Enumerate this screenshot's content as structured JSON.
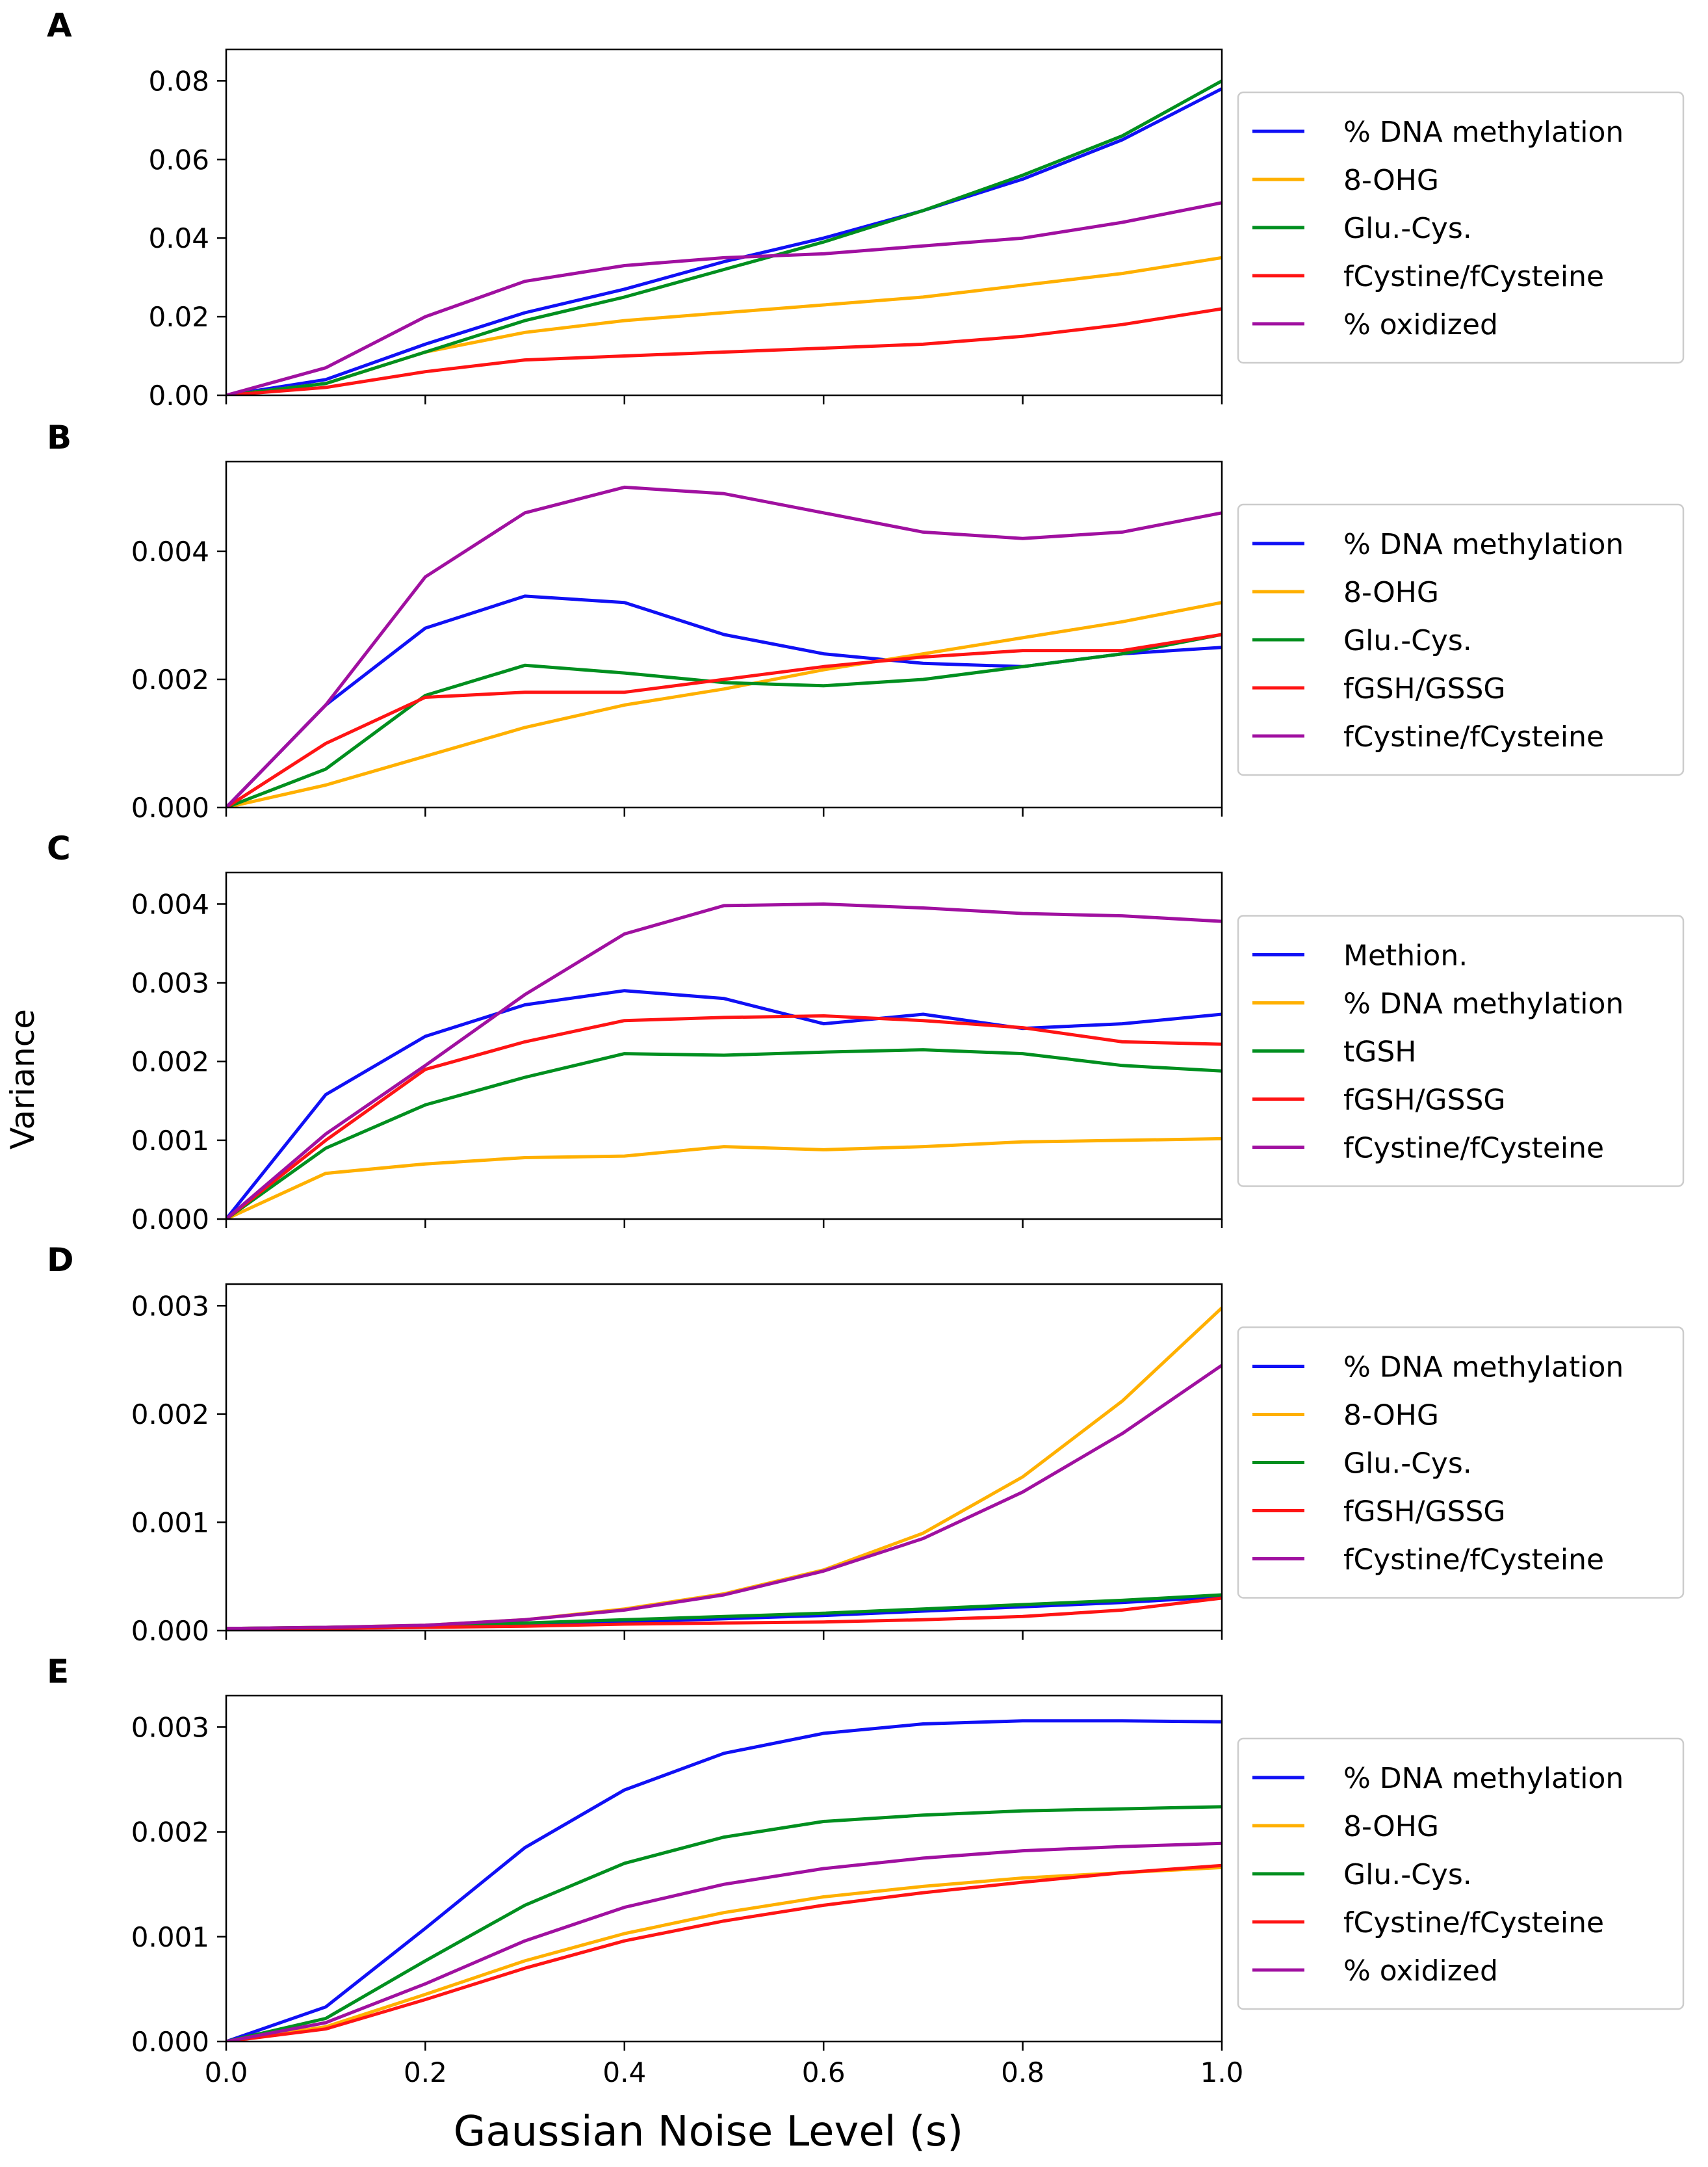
{
  "figure": {
    "ylabel": "Variance",
    "xlabel": "Gaussian Noise Level (s)",
    "xticks": [
      "0.0",
      "0.2",
      "0.4",
      "0.6",
      "0.8",
      "1.0"
    ]
  },
  "colors": {
    "blue": "#1010f5",
    "orange": "#ffb000",
    "green": "#008f1f",
    "red": "#ff1414",
    "purple": "#a010a0"
  },
  "chart_data": [
    {
      "type": "line",
      "panel": "A",
      "x": [
        0,
        0.1,
        0.2,
        0.3,
        0.4,
        0.5,
        0.6,
        0.7,
        0.8,
        0.9,
        1.0
      ],
      "xlim": [
        0,
        1
      ],
      "ylim": [
        0,
        0.088
      ],
      "yticks": [
        0,
        0.02,
        0.04,
        0.06,
        0.08
      ],
      "ytick_labels": [
        "0.00",
        "0.02",
        "0.04",
        "0.06",
        "0.08"
      ],
      "series": [
        {
          "name": "% DNA methylation",
          "color": "blue",
          "values": [
            0,
            0.004,
            0.013,
            0.021,
            0.027,
            0.034,
            0.04,
            0.047,
            0.055,
            0.065,
            0.078
          ]
        },
        {
          "name": "8-OHG",
          "color": "orange",
          "values": [
            0,
            0.003,
            0.011,
            0.016,
            0.019,
            0.021,
            0.023,
            0.025,
            0.028,
            0.031,
            0.035
          ]
        },
        {
          "name": "Glu.-Cys.",
          "color": "green",
          "values": [
            0,
            0.003,
            0.011,
            0.019,
            0.025,
            0.032,
            0.039,
            0.047,
            0.056,
            0.066,
            0.08
          ]
        },
        {
          "name": "fCystine/fCysteine",
          "color": "red",
          "values": [
            0,
            0.002,
            0.006,
            0.009,
            0.01,
            0.011,
            0.012,
            0.013,
            0.015,
            0.018,
            0.022
          ]
        },
        {
          "name": "% oxidized",
          "color": "purple",
          "values": [
            0,
            0.007,
            0.02,
            0.029,
            0.033,
            0.035,
            0.036,
            0.038,
            0.04,
            0.044,
            0.049
          ]
        }
      ]
    },
    {
      "type": "line",
      "panel": "B",
      "x": [
        0,
        0.1,
        0.2,
        0.3,
        0.4,
        0.5,
        0.6,
        0.7,
        0.8,
        0.9,
        1.0
      ],
      "xlim": [
        0,
        1
      ],
      "ylim": [
        0,
        0.0054
      ],
      "yticks": [
        0,
        0.002,
        0.004
      ],
      "ytick_labels": [
        "0.000",
        "0.002",
        "0.004"
      ],
      "series": [
        {
          "name": "% DNA methylation",
          "color": "blue",
          "values": [
            0,
            0.0016,
            0.0028,
            0.0033,
            0.0032,
            0.0027,
            0.0024,
            0.00225,
            0.0022,
            0.0024,
            0.0025
          ]
        },
        {
          "name": "8-OHG",
          "color": "orange",
          "values": [
            0,
            0.00035,
            0.0008,
            0.00125,
            0.0016,
            0.00185,
            0.00215,
            0.0024,
            0.00265,
            0.0029,
            0.0032
          ]
        },
        {
          "name": "Glu.-Cys.",
          "color": "green",
          "values": [
            0,
            0.0006,
            0.00175,
            0.00222,
            0.0021,
            0.00195,
            0.0019,
            0.002,
            0.0022,
            0.0024,
            0.0027
          ]
        },
        {
          "name": "fGSH/GSSG",
          "color": "red",
          "values": [
            0,
            0.001,
            0.00172,
            0.0018,
            0.0018,
            0.002,
            0.0022,
            0.00235,
            0.00245,
            0.00245,
            0.0027
          ]
        },
        {
          "name": "fCystine/fCysteine",
          "color": "purple",
          "values": [
            0,
            0.0016,
            0.0036,
            0.0046,
            0.005,
            0.0049,
            0.0046,
            0.0043,
            0.0042,
            0.0043,
            0.0046
          ]
        }
      ]
    },
    {
      "type": "line",
      "panel": "C",
      "x": [
        0,
        0.1,
        0.2,
        0.3,
        0.4,
        0.5,
        0.6,
        0.7,
        0.8,
        0.9,
        1.0
      ],
      "xlim": [
        0,
        1
      ],
      "ylim": [
        0,
        0.0044
      ],
      "yticks": [
        0,
        0.001,
        0.002,
        0.003,
        0.004
      ],
      "ytick_labels": [
        "0.000",
        "0.001",
        "0.002",
        "0.003",
        "0.004"
      ],
      "series": [
        {
          "name": "Methion.",
          "color": "blue",
          "values": [
            0,
            0.00158,
            0.00232,
            0.00272,
            0.0029,
            0.0028,
            0.00248,
            0.0026,
            0.00242,
            0.00248,
            0.0026
          ]
        },
        {
          "name": "% DNA methylation",
          "color": "orange",
          "values": [
            0,
            0.00058,
            0.0007,
            0.00078,
            0.0008,
            0.00092,
            0.00088,
            0.00092,
            0.00098,
            0.001,
            0.00102
          ]
        },
        {
          "name": "tGSH",
          "color": "green",
          "values": [
            0,
            0.0009,
            0.00145,
            0.0018,
            0.0021,
            0.00208,
            0.00212,
            0.00215,
            0.0021,
            0.00195,
            0.00188
          ]
        },
        {
          "name": "fGSH/GSSG",
          "color": "red",
          "values": [
            0,
            0.001,
            0.0019,
            0.00225,
            0.00252,
            0.00256,
            0.00258,
            0.00252,
            0.00243,
            0.00225,
            0.00222
          ]
        },
        {
          "name": "fCystine/fCysteine",
          "color": "purple",
          "values": [
            0,
            0.00108,
            0.00195,
            0.00285,
            0.00362,
            0.00398,
            0.004,
            0.00395,
            0.00388,
            0.00385,
            0.00378
          ]
        }
      ]
    },
    {
      "type": "line",
      "panel": "D",
      "x": [
        0,
        0.1,
        0.2,
        0.3,
        0.4,
        0.5,
        0.6,
        0.7,
        0.8,
        0.9,
        1.0
      ],
      "xlim": [
        0,
        1
      ],
      "ylim": [
        0,
        0.0032
      ],
      "yticks": [
        0,
        0.001,
        0.002,
        0.003
      ],
      "ytick_labels": [
        "0.000",
        "0.001",
        "0.002",
        "0.003"
      ],
      "series": [
        {
          "name": "% DNA methylation",
          "color": "blue",
          "values": [
            2e-05,
            2e-05,
            3e-05,
            5e-05,
            8e-05,
            0.00011,
            0.00014,
            0.00018,
            0.00022,
            0.00026,
            0.00031
          ]
        },
        {
          "name": "8-OHG",
          "color": "orange",
          "values": [
            2e-05,
            3e-05,
            5e-05,
            0.0001,
            0.0002,
            0.00034,
            0.00056,
            0.0009,
            0.00142,
            0.00212,
            0.00298
          ]
        },
        {
          "name": "Glu.-Cys.",
          "color": "green",
          "values": [
            2e-05,
            3e-05,
            4e-05,
            7e-05,
            0.0001,
            0.00013,
            0.00016,
            0.0002,
            0.00024,
            0.00028,
            0.00033
          ]
        },
        {
          "name": "fGSH/GSSG",
          "color": "red",
          "values": [
            1e-05,
            2e-05,
            3e-05,
            4e-05,
            6e-05,
            7e-05,
            8e-05,
            0.0001,
            0.00013,
            0.00019,
            0.0003
          ]
        },
        {
          "name": "fCystine/fCysteine",
          "color": "purple",
          "values": [
            2e-05,
            3e-05,
            5e-05,
            0.0001,
            0.00019,
            0.00033,
            0.00055,
            0.00085,
            0.00128,
            0.00182,
            0.00245
          ]
        }
      ]
    },
    {
      "type": "line",
      "panel": "E",
      "x": [
        0,
        0.1,
        0.2,
        0.3,
        0.4,
        0.5,
        0.6,
        0.7,
        0.8,
        0.9,
        1.0
      ],
      "xlim": [
        0,
        1
      ],
      "ylim": [
        0,
        0.0033
      ],
      "yticks": [
        0,
        0.001,
        0.002,
        0.003
      ],
      "ytick_labels": [
        "0.000",
        "0.001",
        "0.002",
        "0.003"
      ],
      "series": [
        {
          "name": "% DNA methylation",
          "color": "blue",
          "values": [
            0,
            0.00033,
            0.00108,
            0.00185,
            0.0024,
            0.00275,
            0.00294,
            0.00303,
            0.00306,
            0.00306,
            0.00305
          ]
        },
        {
          "name": "8-OHG",
          "color": "orange",
          "values": [
            0,
            0.00014,
            0.00045,
            0.00077,
            0.00103,
            0.00123,
            0.00138,
            0.00148,
            0.00156,
            0.00161,
            0.00166
          ]
        },
        {
          "name": "Glu.-Cys.",
          "color": "green",
          "values": [
            0,
            0.00022,
            0.00077,
            0.0013,
            0.0017,
            0.00195,
            0.0021,
            0.00216,
            0.0022,
            0.00222,
            0.00224
          ]
        },
        {
          "name": "fCystine/fCysteine",
          "color": "red",
          "values": [
            0,
            0.00012,
            0.0004,
            0.0007,
            0.00096,
            0.00115,
            0.0013,
            0.00142,
            0.00152,
            0.00161,
            0.00168
          ]
        },
        {
          "name": "% oxidized",
          "color": "purple",
          "values": [
            0,
            0.00018,
            0.00055,
            0.00096,
            0.00128,
            0.0015,
            0.00165,
            0.00175,
            0.00182,
            0.00186,
            0.00189
          ]
        }
      ]
    }
  ]
}
